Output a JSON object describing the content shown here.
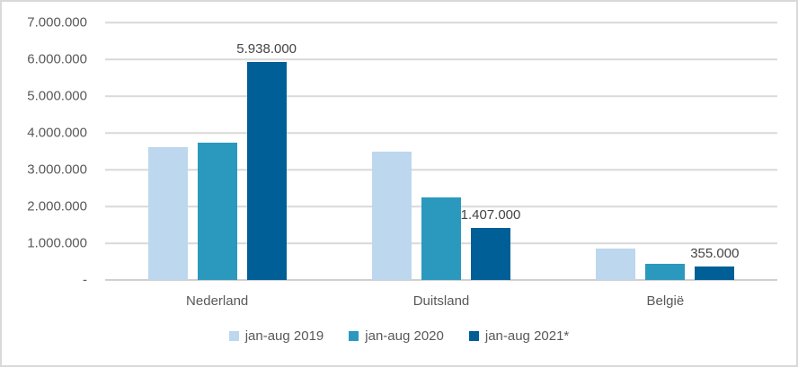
{
  "chart_data": {
    "type": "bar",
    "categories": [
      "Nederland",
      "Duitsland",
      "België"
    ],
    "series": [
      {
        "name": "jan-aug 2019",
        "color": "#BDD7EE",
        "values": [
          3600000,
          3480000,
          850000
        ],
        "labels": [
          null,
          null,
          null
        ]
      },
      {
        "name": "jan-aug 2020",
        "color": "#2B99BE",
        "values": [
          3720000,
          2250000,
          440000
        ],
        "labels": [
          null,
          null,
          null
        ]
      },
      {
        "name": "jan-aug 2021*",
        "color": "#005F96",
        "values": [
          5938000,
          1407000,
          355000
        ],
        "labels": [
          "5.938.000",
          "1.407.000",
          "355.000"
        ]
      }
    ],
    "y_axis": {
      "min": 0,
      "max": 7000000,
      "tick_values": [
        7000000,
        6000000,
        5000000,
        4000000,
        3000000,
        2000000,
        1000000,
        0
      ],
      "tick_labels": [
        "7.000.000",
        "6.000.000",
        "5.000.000",
        "4.000.000",
        "3.000.000",
        "2.000.000",
        "1.000.000",
        "-"
      ]
    },
    "grid": true,
    "legend_position": "bottom"
  },
  "colors": {
    "gridline": "#D9D9D9",
    "axis_line": "#D0D0D0",
    "axis_text": "#595959",
    "data_label_text": "#444444",
    "frame_border": "#D9D9D9",
    "background": "#ffffff"
  }
}
